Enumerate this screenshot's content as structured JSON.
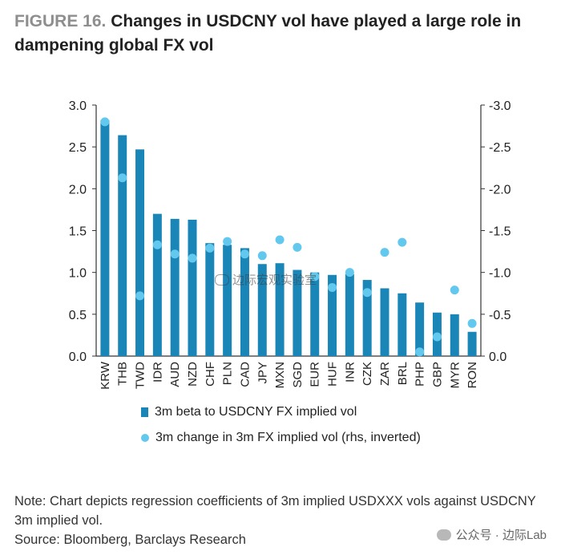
{
  "title": {
    "figure_label": "FIGURE 16.",
    "text": "Changes in USDCNY vol have played a large role in dampening global FX vol"
  },
  "chart_data": {
    "type": "bar",
    "categories": [
      "KRW",
      "THB",
      "TWD",
      "IDR",
      "AUD",
      "NZD",
      "CHF",
      "PLN",
      "CAD",
      "JPY",
      "MXN",
      "SGD",
      "EUR",
      "HUF",
      "INR",
      "CZK",
      "ZAR",
      "BRL",
      "PHP",
      "GBP",
      "MYR",
      "RON"
    ],
    "series": [
      {
        "name": "3m beta to USDCNY FX implied vol",
        "type": "bar",
        "axis": "left",
        "values": [
          2.82,
          2.64,
          2.47,
          1.7,
          1.64,
          1.63,
          1.35,
          1.33,
          1.29,
          1.1,
          1.11,
          1.03,
          1.0,
          0.97,
          0.98,
          0.91,
          0.81,
          0.75,
          0.64,
          0.52,
          0.5,
          0.29
        ]
      },
      {
        "name": "3m change in 3m FX implied vol  (rhs, inverted)",
        "type": "scatter",
        "axis": "right",
        "values": [
          -2.8,
          -2.13,
          -0.72,
          -1.33,
          -1.22,
          -1.17,
          -1.29,
          -1.37,
          -1.22,
          -1.2,
          -1.39,
          -1.3,
          -0.95,
          -0.82,
          -1.0,
          -0.76,
          -1.24,
          -1.36,
          -0.05,
          -0.23,
          -0.79,
          -0.39
        ]
      }
    ],
    "y_left": {
      "min": 0.0,
      "max": 3.0,
      "ticks": [
        "0.0",
        "0.5",
        "1.0",
        "1.5",
        "2.0",
        "2.5",
        "3.0"
      ]
    },
    "y_right": {
      "min": 0.0,
      "max": -3.0,
      "inverted": true,
      "ticks": [
        "0.0",
        "-0.5",
        "-1.0",
        "-1.5",
        "-2.0",
        "-2.5",
        "-3.0"
      ]
    },
    "legend_position": "bottom",
    "colors": {
      "bar": "#1a85b7",
      "dot": "#62c8ee",
      "axis": "#333333"
    }
  },
  "legend": {
    "bar_label": "3m beta to USDCNY FX implied vol",
    "dot_label": "3m change in 3m FX implied vol  (rhs, inverted)"
  },
  "note": {
    "line1": "Note: Chart depicts regression coefficients of 3m implied USDXXX vols against USDCNY 3m implied vol.",
    "source": "Source: Bloomberg, Barclays Research"
  },
  "watermark": {
    "text": "公众号 · 边际Lab",
    "center_text": "边际宏观实验室"
  }
}
